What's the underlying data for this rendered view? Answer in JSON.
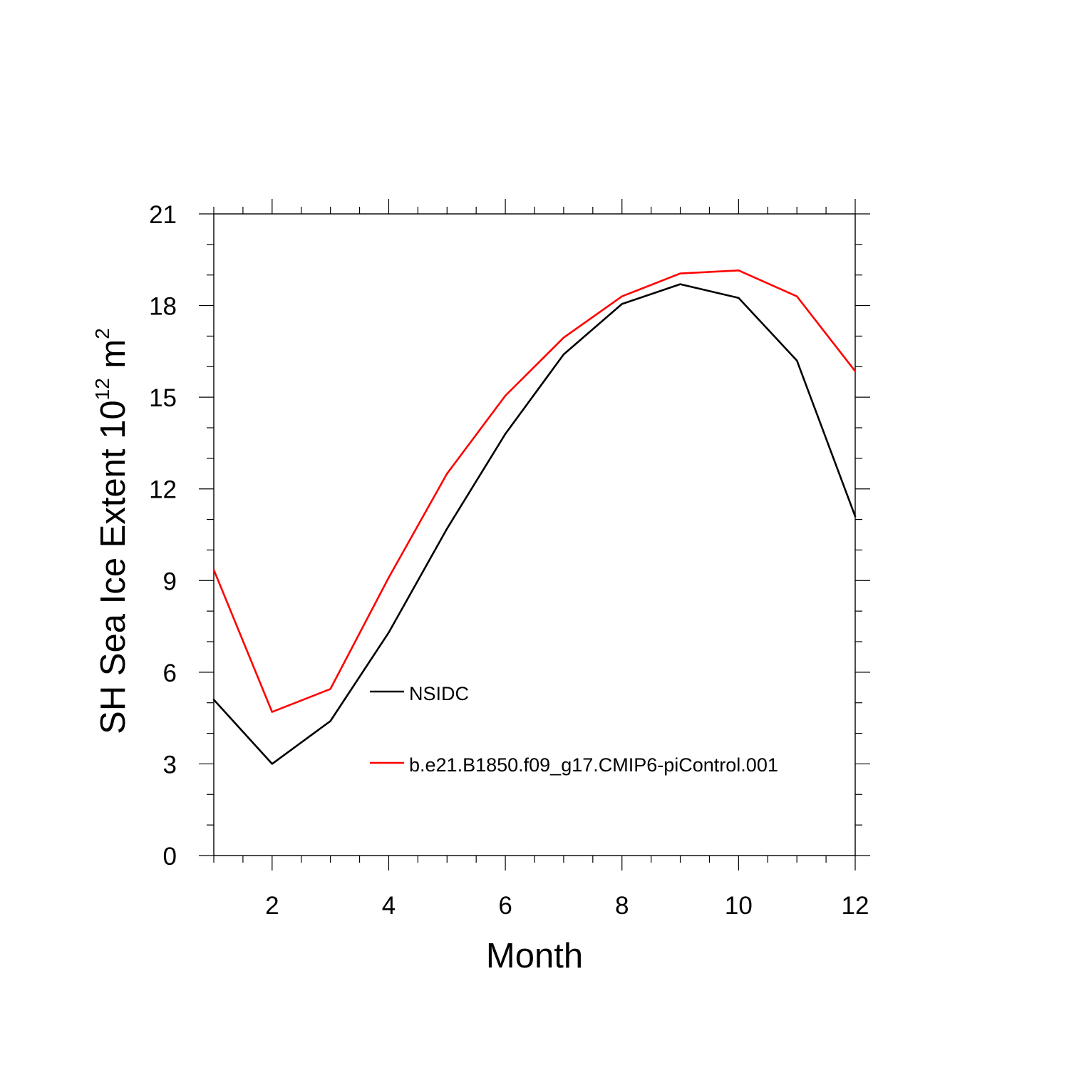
{
  "chart_data": {
    "type": "line",
    "title": "",
    "xlabel": "Month",
    "ylabel": {
      "main": "SH Sea Ice Extent 10",
      "sup1": "12",
      "mid": " m",
      "sup2": "2"
    },
    "xlim": [
      1,
      12
    ],
    "ylim": [
      0,
      21
    ],
    "x_ticks": [
      2,
      4,
      6,
      8,
      10,
      12
    ],
    "x_tick_labels": [
      "2",
      "4",
      "6",
      "8",
      "10",
      "12"
    ],
    "y_ticks": [
      0,
      3,
      6,
      9,
      12,
      15,
      18,
      21
    ],
    "y_tick_labels": [
      "0",
      "3",
      "6",
      "9",
      "12",
      "15",
      "18",
      "21"
    ],
    "grid": false,
    "legend_position": "center-right",
    "x": [
      1,
      2,
      3,
      4,
      5,
      6,
      7,
      8,
      9,
      10,
      11,
      12
    ],
    "series": [
      {
        "name": "NSIDC",
        "color": "#000000",
        "values": [
          5.1,
          3.0,
          4.4,
          7.3,
          10.7,
          13.8,
          16.4,
          18.05,
          18.7,
          18.25,
          16.2,
          11.1
        ]
      },
      {
        "name": "b.e21.B1850.f09_g17.CMIP6-piControl.001",
        "color": "#ff0000",
        "values": [
          9.35,
          4.7,
          5.45,
          9.1,
          12.5,
          15.05,
          16.95,
          18.3,
          19.05,
          19.15,
          18.3,
          15.85
        ]
      }
    ]
  }
}
